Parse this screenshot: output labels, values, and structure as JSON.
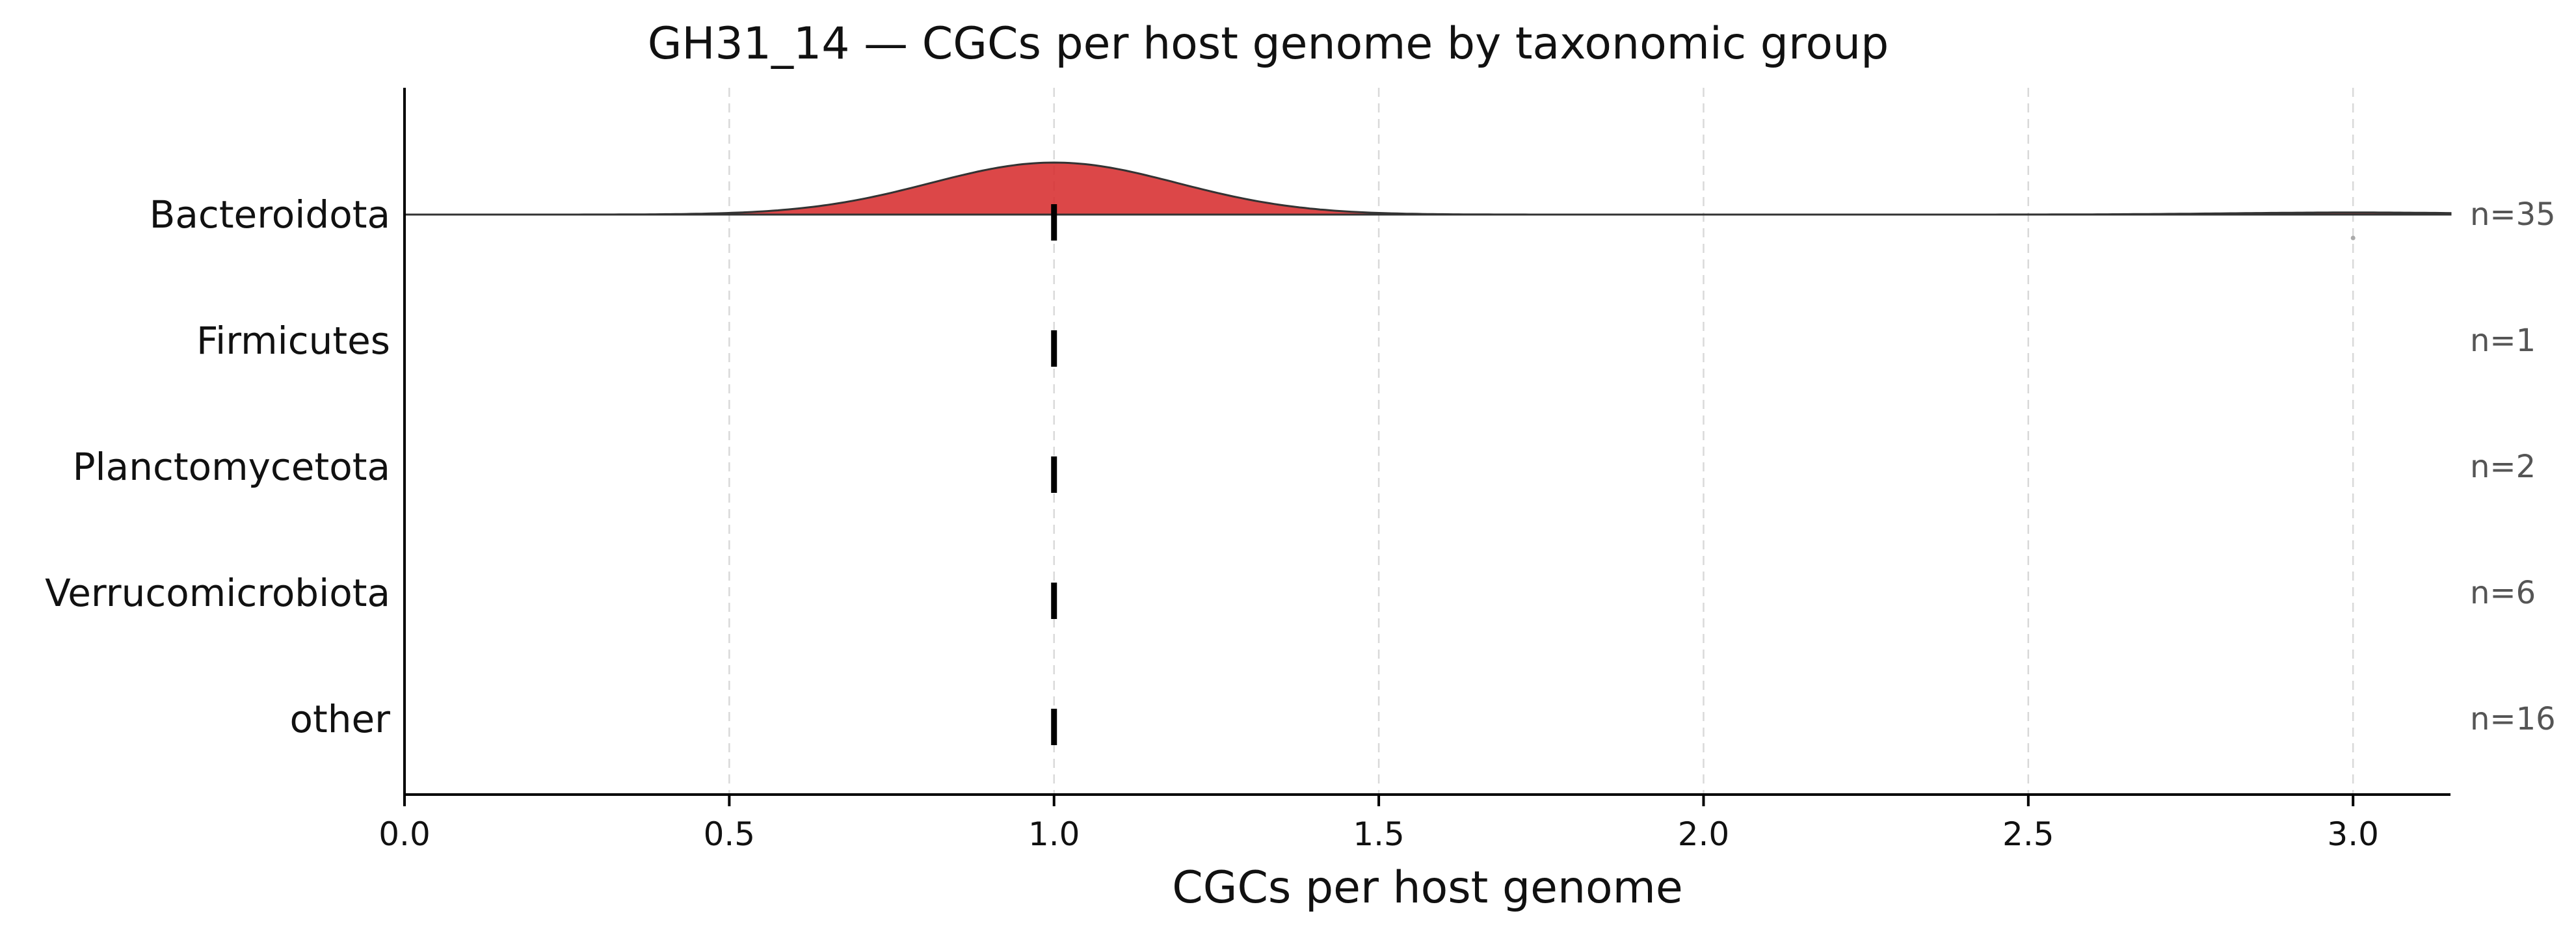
{
  "chart_data": {
    "type": "ridgeline",
    "title": "GH31_14 — CGCs per host genome by taxonomic group",
    "xlabel": "CGCs per host genome",
    "xlim": [
      0,
      3.15
    ],
    "xticks": [
      0.0,
      0.5,
      1.0,
      1.5,
      2.0,
      2.5,
      3.0
    ],
    "xtick_labels": [
      "0.0",
      "0.5",
      "1.0",
      "1.5",
      "2.0",
      "2.5",
      "3.0"
    ],
    "grid": "vertical-dashed",
    "fill_color": "#d62728",
    "groups": [
      {
        "name": "Bacteroidota",
        "n_label": "n=35",
        "n": 35,
        "median": 1.0,
        "values_summary": {
          "main_mode": 1.0,
          "outlier": 3.0
        },
        "density": true
      },
      {
        "name": "Firmicutes",
        "n_label": "n=1",
        "n": 1,
        "median": 1.0,
        "density": false
      },
      {
        "name": "Planctomycetota",
        "n_label": "n=2",
        "n": 2,
        "median": 1.0,
        "density": false
      },
      {
        "name": "Verrucomicrobiota",
        "n_label": "n=6",
        "n": 6,
        "median": 1.0,
        "density": false
      },
      {
        "name": "other",
        "n_label": "n=16",
        "n": 16,
        "median": 1.0,
        "density": false
      }
    ]
  }
}
